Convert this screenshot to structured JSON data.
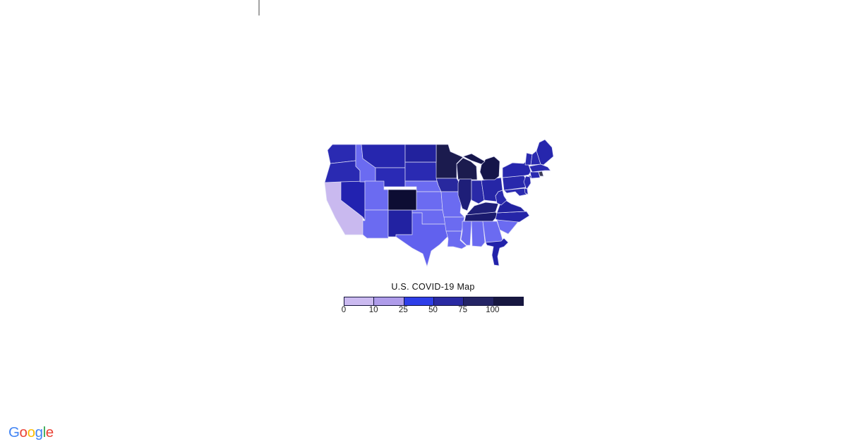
{
  "map": {
    "title": "U.S. COVID-19 Map",
    "legend": {
      "tick_labels": [
        "0",
        "10",
        "25",
        "50",
        "75",
        "100"
      ],
      "segment_colors": [
        "#cbbaf0",
        "#af9cea",
        "#2e3ee8",
        "#2a2aa2",
        "#242465",
        "#171740"
      ],
      "border_color": "#14143c"
    },
    "selected_state": "CO",
    "outlined_state": "ND",
    "state_strokes": {
      "CO": "#2aa7f0",
      "ND": "#000000"
    },
    "state_fills": {
      "WA": "#2a2ab2",
      "OR": "#2a2ab2",
      "CA": "#c9b9ef",
      "NV": "#2222b0",
      "ID": "#6b6bf1",
      "MT": "#2626ae",
      "WY": "#2a2ab5",
      "UT": "#6b6bf1",
      "CO": "#0d0d33",
      "AZ": "#6b6bf1",
      "NM": "#2222a2",
      "ND": "#22229d",
      "SD": "#2a2ab2",
      "NE": "#6b6bf1",
      "KS": "#6b6bf1",
      "OK": "#6b6bf1",
      "TX": "#6161ee",
      "MN": "#1b1b4e",
      "IA": "#28289e",
      "MO": "#6b6bf1",
      "AR": "#6b6bf1",
      "LA": "#6b6bf1",
      "WI": "#1b1b4e",
      "IL": "#1e1e78",
      "MI": "#15154a",
      "IN": "#2a2aa8",
      "OH": "#2626a6",
      "KY": "#1f1f78",
      "TN": "#1b1b6e",
      "MS": "#6b6bf1",
      "AL": "#6b6bf1",
      "GA": "#6b6bf1",
      "SC": "#6b6bf1",
      "FL": "#2222aa",
      "NC": "#2525a8",
      "VA": "#2222a0",
      "WV": "#2a2aae",
      "MD": "#2a2ab0",
      "DE": "#2a2ab0",
      "NJ": "#2a2ab0",
      "PA": "#2828ac",
      "NY": "#2626ad",
      "CT": "#2a2ab0",
      "RI": "#3a3a55",
      "MA": "#2a2ab0",
      "VT": "#2a2ab0",
      "NH": "#2a2ab0",
      "ME": "#2626ad"
    }
  },
  "branding": {
    "letters": [
      {
        "ch": "G",
        "color": "#4285F4"
      },
      {
        "ch": "o",
        "color": "#EA4335"
      },
      {
        "ch": "o",
        "color": "#FBBC05"
      },
      {
        "ch": "g",
        "color": "#4285F4"
      },
      {
        "ch": "l",
        "color": "#34A853"
      },
      {
        "ch": "e",
        "color": "#EA4335"
      }
    ]
  }
}
